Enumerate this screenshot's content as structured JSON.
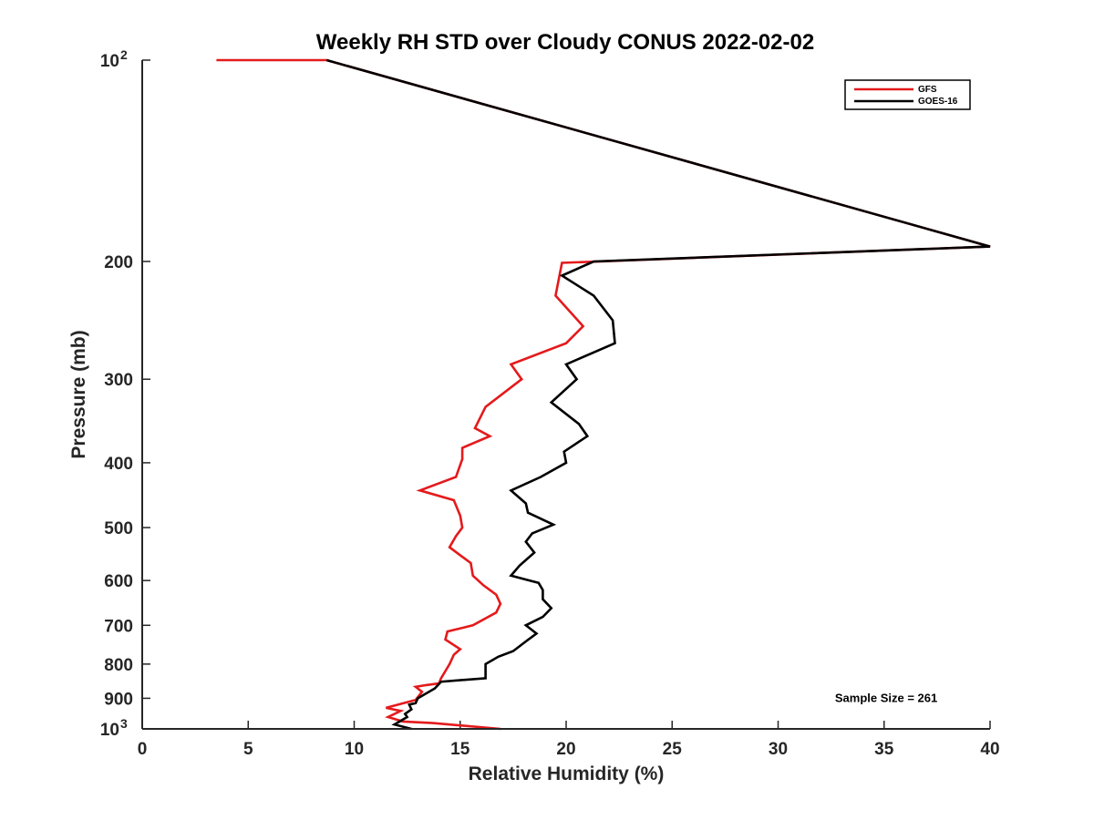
{
  "chart_data": {
    "type": "line",
    "title": "Weekly RH STD over Cloudy CONUS 2022-02-02",
    "xlabel": "Relative Humidity (%)",
    "ylabel": "Pressure (mb)",
    "xlim": [
      0,
      40
    ],
    "ylim": [
      100,
      1000
    ],
    "yscale": "log",
    "y_reversed": true,
    "grid": false,
    "legend_position": "top-right",
    "x_ticks": [
      {
        "value": 0,
        "label": "0"
      },
      {
        "value": 5,
        "label": "5"
      },
      {
        "value": 10,
        "label": "10"
      },
      {
        "value": 15,
        "label": "15"
      },
      {
        "value": 20,
        "label": "20"
      },
      {
        "value": 25,
        "label": "25"
      },
      {
        "value": 30,
        "label": "30"
      },
      {
        "value": 35,
        "label": "35"
      },
      {
        "value": 40,
        "label": "40"
      }
    ],
    "y_ticks": [
      {
        "value": 100,
        "label": "10",
        "sup": "2"
      },
      {
        "value": 200,
        "label": "200",
        "sup": ""
      },
      {
        "value": 300,
        "label": "300",
        "sup": ""
      },
      {
        "value": 400,
        "label": "400",
        "sup": ""
      },
      {
        "value": 500,
        "label": "500",
        "sup": ""
      },
      {
        "value": 600,
        "label": "600",
        "sup": ""
      },
      {
        "value": 700,
        "label": "700",
        "sup": ""
      },
      {
        "value": 800,
        "label": "800",
        "sup": ""
      },
      {
        "value": 900,
        "label": "900",
        "sup": ""
      },
      {
        "value": 1000,
        "label": "10",
        "sup": "3"
      }
    ],
    "series": [
      {
        "name": "GFS",
        "color": "#e41a1c",
        "x": [
          16.9,
          13.7,
          12.3,
          11.6,
          12.2,
          11.5,
          12.9,
          13.2,
          12.9,
          13.4,
          14.0,
          14.1,
          14.5,
          14.7,
          15.0,
          14.3,
          14.4,
          15.6,
          16.7,
          16.9,
          16.7,
          16.1,
          15.6,
          15.5,
          15.0,
          14.5,
          14.8,
          15.1,
          15.0,
          14.7,
          13.1,
          14.8,
          15.1,
          15.1,
          16.4,
          15.7,
          16.2,
          17.9,
          17.4,
          20.0,
          20.8,
          19.5,
          19.8,
          40.0,
          8.7,
          3.5
        ],
        "y": [
          1000,
          980,
          975,
          960,
          940,
          930,
          905,
          880,
          865,
          860,
          855,
          840,
          800,
          775,
          760,
          735,
          715,
          700,
          670,
          650,
          630,
          610,
          590,
          565,
          550,
          535,
          515,
          500,
          480,
          455,
          440,
          420,
          395,
          380,
          365,
          355,
          330,
          300,
          285,
          265,
          250,
          225,
          201,
          190,
          100,
          100
        ]
      },
      {
        "name": "GOES-16",
        "color": "#000000",
        "x": [
          12.7,
          11.9,
          12.5,
          12.4,
          12.7,
          12.6,
          12.9,
          13.0,
          13.8,
          14.1,
          16.2,
          16.2,
          16.8,
          17.5,
          18.1,
          18.6,
          18.1,
          18.9,
          19.3,
          18.9,
          18.9,
          18.7,
          17.4,
          17.8,
          18.5,
          18.1,
          18.4,
          19.4,
          18.2,
          18.1,
          17.4,
          18.8,
          20.0,
          19.9,
          21.0,
          20.6,
          19.3,
          20.5,
          20.0,
          22.3,
          22.2,
          21.3,
          19.8,
          21.3,
          40.0,
          8.7
        ],
        "y": [
          1000,
          985,
          960,
          950,
          935,
          920,
          915,
          900,
          870,
          850,
          840,
          800,
          780,
          765,
          740,
          720,
          700,
          680,
          660,
          640,
          620,
          605,
          590,
          570,
          545,
          525,
          510,
          495,
          475,
          460,
          440,
          420,
          400,
          385,
          365,
          350,
          325,
          300,
          285,
          265,
          245,
          225,
          210,
          200,
          190,
          100
        ]
      }
    ],
    "annotations": [
      {
        "text": "Sample Size = 261",
        "x": 35.1,
        "y": 900
      }
    ]
  }
}
